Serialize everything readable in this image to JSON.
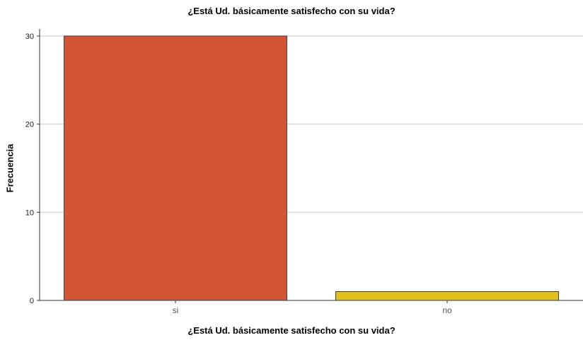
{
  "chart_data": {
    "type": "bar",
    "title": "¿Está Ud. básicamente satisfecho con su vida?",
    "xlabel": "¿Está Ud. básicamente satisfecho con su vida?",
    "ylabel": "Frecuencia",
    "categories": [
      "si",
      "no"
    ],
    "values": [
      30,
      1
    ],
    "colors": [
      "#d25536",
      "#e2c11d"
    ],
    "ylim": [
      0,
      30
    ],
    "yticks": [
      0,
      10,
      20,
      30
    ],
    "grid": true,
    "legend": "none"
  }
}
